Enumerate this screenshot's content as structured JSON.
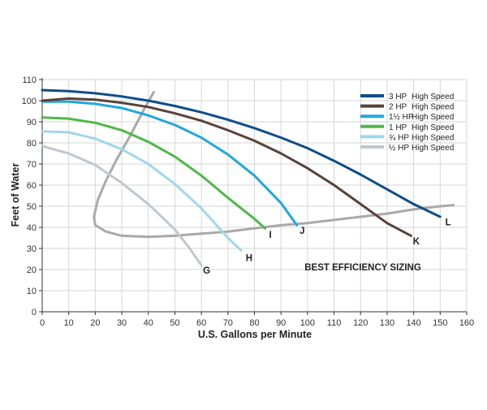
{
  "chart_data": {
    "type": "line",
    "xlabel": "U.S. Gallons per Minute",
    "ylabel": "Feet of Water",
    "xlim": [
      0,
      160
    ],
    "ylim": [
      0,
      110
    ],
    "x_ticks": [
      "0",
      "10",
      "20",
      "30",
      "40",
      "50",
      "60",
      "70",
      "80",
      "90",
      "100",
      "110",
      "120",
      "130",
      "140",
      "150",
      "160"
    ],
    "y_ticks": [
      "0",
      "10",
      "20",
      "30",
      "40",
      "50",
      "60",
      "70",
      "80",
      "90",
      "100",
      "110"
    ],
    "grid": true,
    "legend_position": "top-right",
    "series": [
      {
        "name": "3 HP",
        "speed": "High Speed",
        "marker": "L",
        "color": "#0f4d8a",
        "x": [
          0,
          10,
          20,
          30,
          40,
          50,
          60,
          70,
          80,
          90,
          100,
          110,
          120,
          130,
          140,
          150
        ],
        "y": [
          105,
          104.5,
          103.5,
          102,
          100,
          97.5,
          94.5,
          91,
          87,
          82.5,
          77.5,
          71.5,
          65,
          58,
          51,
          45
        ]
      },
      {
        "name": "2 HP",
        "speed": "High Speed",
        "marker": "K",
        "color": "#5a4239",
        "x": [
          0,
          10,
          20,
          30,
          40,
          50,
          60,
          70,
          80,
          90,
          100,
          110,
          120,
          130,
          139
        ],
        "y": [
          100,
          101,
          100.5,
          99,
          97,
          94,
          90.5,
          86,
          81,
          75,
          68,
          60,
          51,
          42,
          36
        ]
      },
      {
        "name": "1½ HP",
        "speed": "High Speed",
        "marker": "J",
        "color": "#22a7de",
        "x": [
          0,
          10,
          20,
          30,
          40,
          50,
          60,
          70,
          80,
          90,
          96
        ],
        "y": [
          99.5,
          99.5,
          98.5,
          96.5,
          93,
          88.5,
          82.5,
          74.5,
          64.5,
          51.5,
          41
        ]
      },
      {
        "name": "1 HP",
        "speed": "High Speed",
        "marker": "I",
        "color": "#4fb848",
        "x": [
          0,
          10,
          20,
          30,
          40,
          50,
          60,
          70,
          80,
          84
        ],
        "y": [
          92,
          91.5,
          89.5,
          86,
          80.5,
          73.5,
          64.5,
          54,
          44,
          39.5
        ]
      },
      {
        "name": "¾ HP",
        "speed": "High Speed",
        "marker": "H",
        "color": "#9fd7ea",
        "x": [
          0,
          10,
          20,
          30,
          40,
          50,
          60,
          70,
          75
        ],
        "y": [
          85.5,
          85,
          82,
          77,
          70,
          60.5,
          49,
          35,
          29
        ]
      },
      {
        "name": "½ HP",
        "speed": "High Speed",
        "marker": "G",
        "color": "#bfc8cf",
        "x": [
          0,
          10,
          20,
          30,
          40,
          50,
          55,
          60
        ],
        "y": [
          78.5,
          75,
          69.5,
          61,
          51,
          39,
          31,
          22
        ]
      }
    ],
    "efficiency_curve": {
      "label": "BEST EFFICIENCY SIZING",
      "color": "#a9a9a9",
      "x": [
        42,
        38,
        33,
        28,
        24,
        21,
        19.5,
        20,
        24,
        30,
        40,
        50,
        60,
        70,
        80,
        90,
        100,
        110,
        120,
        130,
        140,
        150,
        155
      ],
      "y": [
        104,
        95,
        83,
        72,
        62,
        53,
        45,
        41,
        38,
        36,
        35.5,
        36,
        37,
        38,
        39.5,
        41,
        42,
        43.5,
        45,
        46.5,
        48.5,
        50,
        50.5
      ]
    },
    "annotations": [
      {
        "text": "G",
        "x": 62,
        "y": 18
      },
      {
        "text": "H",
        "x": 78,
        "y": 24
      },
      {
        "text": "I",
        "x": 86,
        "y": 35
      },
      {
        "text": "J",
        "x": 98,
        "y": 37
      },
      {
        "text": "K",
        "x": 141,
        "y": 32
      },
      {
        "text": "L",
        "x": 153,
        "y": 41
      }
    ]
  }
}
